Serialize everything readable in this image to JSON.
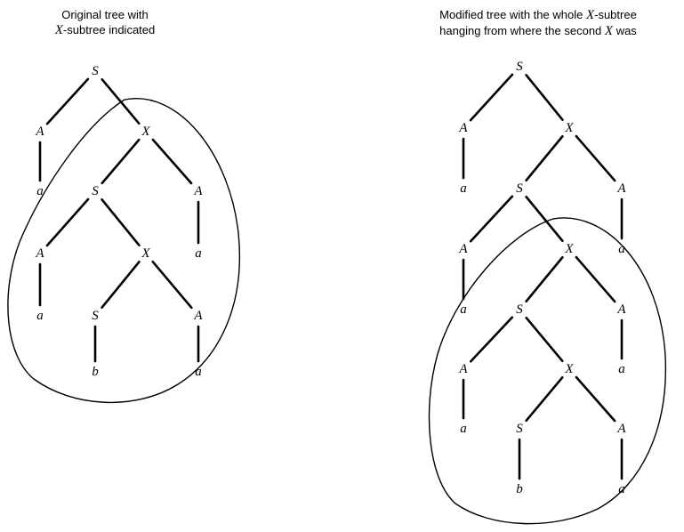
{
  "captions": {
    "left": {
      "line1": "Original tree with",
      "line2_var": "X",
      "line2_rest": "-subtree indicated"
    },
    "right": {
      "line1_pre": "Modified tree with the whole ",
      "line1_var": "X",
      "line1_post": "-subtree",
      "line2_pre": "hanging from where the second ",
      "line2_var": "X",
      "line2_post": " was"
    }
  },
  "colors": {
    "ink": "#000000",
    "background": "#ffffff"
  },
  "trees": [
    {
      "id": "left",
      "nodes": [
        {
          "id": "S1",
          "label": "S"
        },
        {
          "id": "A1",
          "label": "A"
        },
        {
          "id": "X1",
          "label": "X"
        },
        {
          "id": "a1",
          "label": "a"
        },
        {
          "id": "S2",
          "label": "S"
        },
        {
          "id": "A2",
          "label": "A"
        },
        {
          "id": "A3",
          "label": "A"
        },
        {
          "id": "X2",
          "label": "X"
        },
        {
          "id": "a2",
          "label": "a"
        },
        {
          "id": "a3",
          "label": "a"
        },
        {
          "id": "S3",
          "label": "S"
        },
        {
          "id": "A4",
          "label": "A"
        },
        {
          "id": "b1",
          "label": "b"
        },
        {
          "id": "a4",
          "label": "a"
        }
      ],
      "edges": [
        [
          "S1",
          "A1"
        ],
        [
          "S1",
          "X1"
        ],
        [
          "A1",
          "a1"
        ],
        [
          "X1",
          "S2"
        ],
        [
          "X1",
          "A2"
        ],
        [
          "A2",
          "a2"
        ],
        [
          "S2",
          "A3"
        ],
        [
          "S2",
          "X2"
        ],
        [
          "A3",
          "a3"
        ],
        [
          "X2",
          "S3"
        ],
        [
          "X2",
          "A4"
        ],
        [
          "S3",
          "b1"
        ],
        [
          "A4",
          "a4"
        ]
      ]
    },
    {
      "id": "right",
      "nodes": [
        {
          "id": "S1",
          "label": "S"
        },
        {
          "id": "A1",
          "label": "A"
        },
        {
          "id": "X1",
          "label": "X"
        },
        {
          "id": "a1",
          "label": "a"
        },
        {
          "id": "S2",
          "label": "S"
        },
        {
          "id": "A2",
          "label": "A"
        },
        {
          "id": "A3",
          "label": "A"
        },
        {
          "id": "X2",
          "label": "X"
        },
        {
          "id": "a2",
          "label": "a"
        },
        {
          "id": "a3",
          "label": "a"
        },
        {
          "id": "S3",
          "label": "S"
        },
        {
          "id": "A4",
          "label": "A"
        },
        {
          "id": "A5",
          "label": "A"
        },
        {
          "id": "X3",
          "label": "X"
        },
        {
          "id": "a4",
          "label": "a"
        },
        {
          "id": "a5",
          "label": "a"
        },
        {
          "id": "S4",
          "label": "S"
        },
        {
          "id": "A6",
          "label": "A"
        },
        {
          "id": "b1",
          "label": "b"
        },
        {
          "id": "a6",
          "label": "a"
        }
      ],
      "edges": [
        [
          "S1",
          "A1"
        ],
        [
          "S1",
          "X1"
        ],
        [
          "A1",
          "a1"
        ],
        [
          "X1",
          "S2"
        ],
        [
          "X1",
          "A2"
        ],
        [
          "A2",
          "a2"
        ],
        [
          "S2",
          "A3"
        ],
        [
          "S2",
          "X2"
        ],
        [
          "A3",
          "a3"
        ],
        [
          "X2",
          "S3"
        ],
        [
          "X2",
          "A4"
        ],
        [
          "A4",
          "a4"
        ],
        [
          "S3",
          "A5"
        ],
        [
          "S3",
          "X3"
        ],
        [
          "A5",
          "a5"
        ],
        [
          "X3",
          "S4"
        ],
        [
          "X3",
          "A6"
        ],
        [
          "S4",
          "b1"
        ],
        [
          "A6",
          "a6"
        ]
      ]
    }
  ]
}
